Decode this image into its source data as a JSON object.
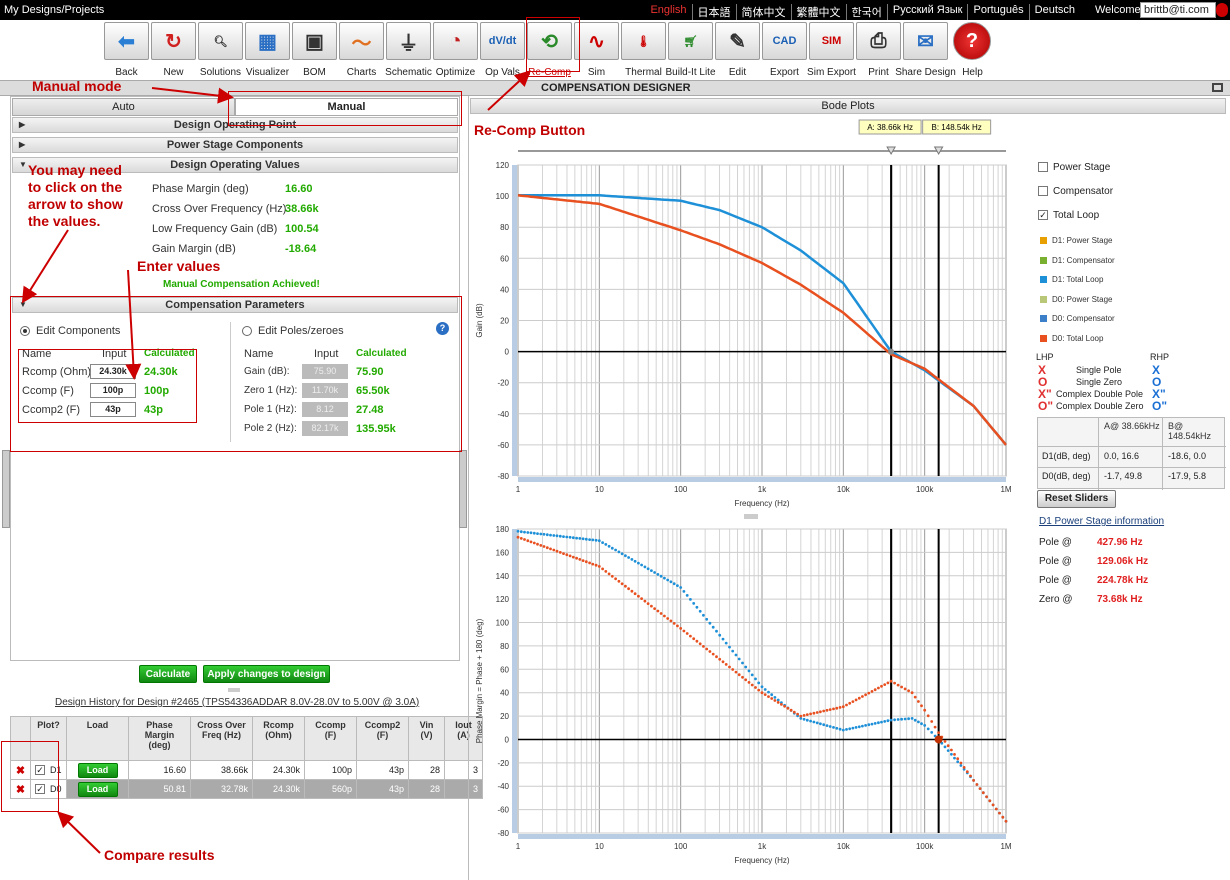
{
  "topbar": {
    "breadcrumb": "My Designs/Projects",
    "languages": [
      "English",
      "日本語",
      "简体中文",
      "繁體中文",
      "한국어",
      "Русский Язык",
      "Português",
      "Deutsch"
    ],
    "welcome": "Welcome",
    "user": "brittb@ti.com"
  },
  "toolbar": [
    {
      "label": "Back",
      "icon": "back-arrow-icon",
      "glyph": "⬅",
      "color": "#2a7fd4"
    },
    {
      "label": "New",
      "icon": "new-refresh-icon",
      "glyph": "↻",
      "color": "#d02020"
    },
    {
      "label": "Solutions",
      "icon": "magnifier-icon",
      "glyph": "🔍︎",
      "color": "#333"
    },
    {
      "label": "Visualizer",
      "icon": "visualizer-grid-icon",
      "glyph": "▦",
      "color": "#2a6fc4"
    },
    {
      "label": "BOM",
      "icon": "bom-parts-icon",
      "glyph": "▣",
      "color": "#333"
    },
    {
      "label": "Charts",
      "icon": "charts-icon",
      "glyph": "〜",
      "color": "#e07020"
    },
    {
      "label": "Schematic",
      "icon": "schematic-icon",
      "glyph": "⏚",
      "color": "#333"
    },
    {
      "label": "Optimize",
      "icon": "gauge-icon",
      "glyph": "◔",
      "color": "#c02020"
    },
    {
      "label": "Op Vals",
      "icon": "dv-dt-icon",
      "glyph": "dV/dt",
      "color": "#1a5fb4"
    },
    {
      "label": "Re-Comp",
      "icon": "recomp-icon",
      "glyph": "⟲",
      "color": "#2a8a2a"
    },
    {
      "label": "Sim",
      "icon": "sine-wave-icon",
      "glyph": "∿",
      "color": "#c00"
    },
    {
      "label": "Thermal",
      "icon": "thermometer-icon",
      "glyph": "🌡︎",
      "color": "#c00"
    },
    {
      "label": "Build-It Lite",
      "icon": "cart-icon",
      "glyph": "🛒︎",
      "color": "#2a8a2a"
    },
    {
      "label": "Edit",
      "icon": "edit-pencil-icon",
      "glyph": "✎",
      "color": "#333"
    },
    {
      "label": "Export",
      "icon": "cad-icon",
      "glyph": "CAD",
      "color": "#1a5fb4"
    },
    {
      "label": "Sim Export",
      "icon": "sim-export-icon",
      "glyph": "SIM",
      "color": "#c00"
    },
    {
      "label": "Print",
      "icon": "printer-icon",
      "glyph": "⎙",
      "color": "#333"
    },
    {
      "label": "Share Design",
      "icon": "share-icon",
      "glyph": "✉",
      "color": "#2a6fc4"
    },
    {
      "label": "Help",
      "icon": "help-icon",
      "glyph": "?",
      "color": "#fff"
    }
  ],
  "header": {
    "title": "COMPENSATION DESIGNER"
  },
  "tabs": {
    "auto": "Auto",
    "manual": "Manual"
  },
  "sections": {
    "op_point": "Design Operating Point",
    "power_stage": "Power Stage Components",
    "op_values": "Design Operating Values",
    "comp_params": "Compensation Parameters"
  },
  "op_values": [
    {
      "label": "Phase Margin (deg)",
      "value": "16.60"
    },
    {
      "label": "Cross Over Frequency (Hz)",
      "value": "38.66k"
    },
    {
      "label": "Low Frequency Gain (dB)",
      "value": "100.54"
    },
    {
      "label": "Gain Margin (dB)",
      "value": "-18.64"
    }
  ],
  "status": "Manual Compensation Achieved!",
  "comp": {
    "edit_components": "Edit Components",
    "edit_poles": "Edit Poles/zeroes",
    "hdr_name": "Name",
    "hdr_input": "Input",
    "hdr_calc": "Calculated",
    "components": [
      {
        "name": "Rcomp (Ohm)",
        "input": "24.30k",
        "calc": "24.30k"
      },
      {
        "name": "Ccomp (F)",
        "input": "100p",
        "calc": "100p"
      },
      {
        "name": "Ccomp2 (F)",
        "input": "43p",
        "calc": "43p"
      }
    ],
    "poles": [
      {
        "name": "Gain (dB):",
        "input": "75.90",
        "calc": "75.90"
      },
      {
        "name": "Zero 1 (Hz):",
        "input": "11.70k",
        "calc": "65.50k"
      },
      {
        "name": "Pole 1 (Hz):",
        "input": "8.12",
        "calc": "27.48"
      },
      {
        "name": "Pole 2 (Hz):",
        "input": "82.17k",
        "calc": "135.95k"
      }
    ]
  },
  "buttons": {
    "calculate": "Calculate",
    "apply": "Apply changes to design",
    "reset": "Reset Sliders"
  },
  "history": {
    "title": "Design History for Design #2465 (TPS54336ADDAR 8.0V-28.0V to 5.00V @ 3.0A)",
    "headers": [
      "Plot?",
      "Load",
      "Phase Margin (deg)",
      "Cross Over Freq (Hz)",
      "Rcomp (Ohm)",
      "Ccomp (F)",
      "Ccomp2 (F)",
      "Vin (V)",
      "Iout (A)"
    ],
    "rows": [
      {
        "id": "D1",
        "load": "Load",
        "pm": "16.60",
        "fc": "38.66k",
        "r": "24.30k",
        "c": "100p",
        "c2": "43p",
        "vin": "28",
        "iout": "3"
      },
      {
        "id": "D0",
        "load": "Load",
        "pm": "50.81",
        "fc": "32.78k",
        "r": "24.30k",
        "c": "560p",
        "c2": "43p",
        "vin": "28",
        "iout": "3"
      }
    ]
  },
  "bode": {
    "title": "Bode Plots",
    "slider_a": "A: 38.66k Hz",
    "slider_b": "B: 148.54k Hz",
    "gain_ylabel": "Gain (dB)",
    "phase_ylabel": "Phase Margin = Phase + 180 (deg)",
    "xlabel": "Frequency (Hz)",
    "xticks": [
      "1",
      "10",
      "100",
      "1k",
      "10k",
      "100k",
      "1M"
    ],
    "gain_yticks": [
      "120",
      "100",
      "80",
      "60",
      "40",
      "20",
      "0",
      "-20",
      "-40",
      "-60",
      "-80"
    ],
    "phase_yticks": [
      "180",
      "160",
      "140",
      "120",
      "100",
      "80",
      "60",
      "40",
      "20",
      "0",
      "-20",
      "-40",
      "-60",
      "-80"
    ]
  },
  "legend": {
    "checks": [
      {
        "label": "Power Stage",
        "checked": false
      },
      {
        "label": "Compensator",
        "checked": false
      },
      {
        "label": "Total Loop",
        "checked": true
      }
    ],
    "items": [
      {
        "label": "D1: Power Stage",
        "color": "#e8a000"
      },
      {
        "label": "D1: Compensator",
        "color": "#7ab030"
      },
      {
        "label": "D1: Total Loop",
        "color": "#1e90d8"
      },
      {
        "label": "D0: Power Stage",
        "color": "#b8c878"
      },
      {
        "label": "D0: Compensator",
        "color": "#3a7fc8"
      },
      {
        "label": "D0: Total Loop",
        "color": "#e85020"
      }
    ],
    "lhp": "LHP",
    "rhp": "RHP",
    "sym": [
      {
        "l": "X",
        "t": "Single Pole",
        "r": "X"
      },
      {
        "l": "O",
        "t": "Single Zero",
        "r": "O"
      },
      {
        "l": "X\"",
        "t": "Complex Double Pole",
        "r": "X\""
      },
      {
        "l": "O\"",
        "t": "Complex Double Zero",
        "r": "O\""
      }
    ]
  },
  "readout": {
    "col_a": "A@ 38.66kHz",
    "col_b": "B@ 148.54kHz",
    "rows": [
      {
        "name": "D1(dB, deg)",
        "a": "0.0, 16.6",
        "b": "-18.6, 0.0"
      },
      {
        "name": "D0(dB, deg)",
        "a": "-1.7, 49.8",
        "b": "-17.9, 5.8"
      }
    ]
  },
  "ps_info": {
    "title": "D1 Power Stage information",
    "rows": [
      {
        "k": "Pole @",
        "v": "427.96 Hz"
      },
      {
        "k": "Pole @",
        "v": "129.06k Hz"
      },
      {
        "k": "Pole @",
        "v": "224.78k Hz"
      },
      {
        "k": "Zero @",
        "v": "73.68k Hz"
      }
    ]
  },
  "annotations": {
    "manual_mode": "Manual mode",
    "recomp": "Re-Comp Button",
    "arrow_note": "You may need to click on the arrow to show the values.",
    "enter": "Enter values",
    "compare": "Compare results"
  },
  "chart_data": [
    {
      "type": "line",
      "xscale": "log",
      "xlabel": "Frequency (Hz)",
      "ylabel": "Gain (dB)",
      "ylim": [
        -80,
        120
      ],
      "xlim": [
        1,
        1000000
      ],
      "series": [
        {
          "name": "D1: Total Loop",
          "x": [
            1,
            10,
            100,
            300,
            1000,
            3000,
            10000,
            38660,
            100000,
            148540,
            400000,
            1000000
          ],
          "y": [
            100.5,
            100.5,
            97,
            91,
            80,
            65,
            44,
            0,
            -12,
            -18.6,
            -35,
            -60
          ]
        },
        {
          "name": "D0: Total Loop",
          "x": [
            1,
            10,
            100,
            300,
            1000,
            3000,
            10000,
            38660,
            100000,
            148540,
            400000,
            1000000
          ],
          "y": [
            100.5,
            95,
            78,
            69,
            57,
            43,
            25,
            -1.7,
            -11,
            -17.9,
            -35,
            -60
          ]
        }
      ],
      "cursors": [
        38660,
        148540
      ]
    },
    {
      "type": "scatter",
      "xscale": "log",
      "xlabel": "Frequency (Hz)",
      "ylabel": "Phase Margin = Phase + 180 (deg)",
      "ylim": [
        -80,
        180
      ],
      "xlim": [
        1,
        1000000
      ],
      "series": [
        {
          "name": "D1: Total Loop",
          "x": [
            1,
            10,
            100,
            1000,
            3000,
            10000,
            38660,
            70000,
            100000,
            148540,
            400000,
            1000000
          ],
          "y": [
            178,
            170,
            130,
            45,
            18,
            8,
            16.6,
            18,
            12,
            0,
            -35,
            -70
          ]
        },
        {
          "name": "D0: Total Loop",
          "x": [
            1,
            10,
            100,
            1000,
            3000,
            10000,
            38660,
            70000,
            100000,
            148540,
            400000,
            1000000
          ],
          "y": [
            173,
            148,
            95,
            40,
            20,
            28,
            49.8,
            40,
            25,
            5.8,
            -35,
            -70
          ]
        }
      ],
      "cursors": [
        38660,
        148540
      ]
    }
  ]
}
